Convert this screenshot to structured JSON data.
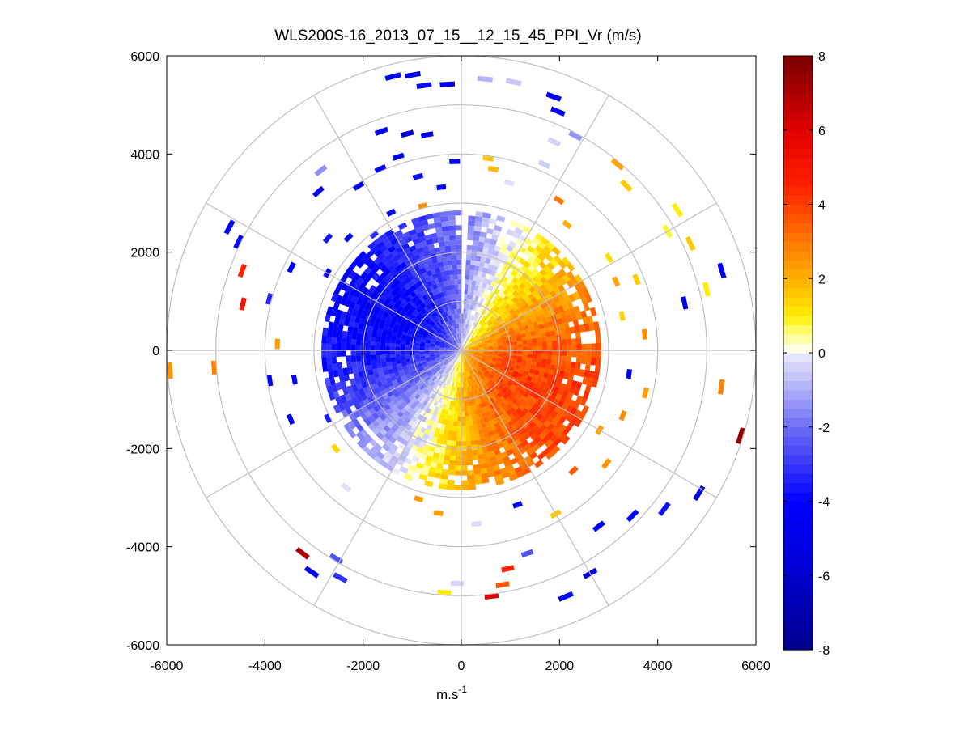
{
  "chart_data": {
    "type": "heatmap",
    "subtype": "polar-ppi",
    "title": "WLS200S-16_2013_07_15__12_15_45_PPI_Vr (m/s)",
    "xlabel": "m.s",
    "xlabel_superscript": "-1",
    "ylabel": "",
    "xlim": [
      -6000,
      6000
    ],
    "ylim": [
      -6000,
      6000
    ],
    "x_ticks": [
      "-6000",
      "-4000",
      "-2000",
      "0",
      "2000",
      "4000",
      "6000"
    ],
    "y_ticks": [
      "6000",
      "4000",
      "2000",
      "0",
      "-2000",
      "-4000",
      "-6000"
    ],
    "polar_rings_m": [
      1000,
      2000,
      3000,
      4000,
      5000,
      6000
    ],
    "polar_spokes_deg": [
      0,
      30,
      60,
      90,
      120,
      150,
      180,
      210,
      240,
      270,
      300,
      330
    ],
    "grid": true,
    "colorbar": {
      "min": -8,
      "max": 8,
      "ticks": [
        "8",
        "6",
        "4",
        "2",
        "0",
        "-2",
        "-4",
        "-6",
        "-8"
      ],
      "colormap": [
        {
          "v": -8,
          "c": "#00008c"
        },
        {
          "v": -5.5,
          "c": "#0000dc"
        },
        {
          "v": -4,
          "c": "#0000ff"
        },
        {
          "v": -2,
          "c": "#6e6ef5"
        },
        {
          "v": 0,
          "c": "#ececfc"
        },
        {
          "v": 0.01,
          "c": "#ffffff"
        },
        {
          "v": 0.5,
          "c": "#ffff8c"
        },
        {
          "v": 1,
          "c": "#ffee00"
        },
        {
          "v": 2,
          "c": "#ffae00"
        },
        {
          "v": 3,
          "c": "#ff7a00"
        },
        {
          "v": 4.5,
          "c": "#ff2000"
        },
        {
          "v": 6,
          "c": "#e00000"
        },
        {
          "v": 8,
          "c": "#780000"
        }
      ]
    },
    "wind_field": {
      "dense_range_m": [
        50,
        2800
      ],
      "speed_coefficient": 4.0,
      "wind_from_bearing_deg": 295
    },
    "sparse_returns": [
      {
        "r": 5700,
        "az": 346,
        "v": -4.6
      },
      {
        "r": 5650,
        "az": 350,
        "v": -4.3
      },
      {
        "r": 5400,
        "az": 352,
        "v": -3.8
      },
      {
        "r": 5380,
        "az": 357,
        "v": -4.9
      },
      {
        "r": 5500,
        "az": 5,
        "v": -0.9
      },
      {
        "r": 5520,
        "az": 11,
        "v": -0.6
      },
      {
        "r": 5450,
        "az": 20,
        "v": -4.5
      },
      {
        "r": 5200,
        "az": 22,
        "v": -4.2
      },
      {
        "r": 4900,
        "az": 28,
        "v": -1.4
      },
      {
        "r": 4600,
        "az": 24,
        "v": -0.4
      },
      {
        "r": 4900,
        "az": 40,
        "v": 2.2
      },
      {
        "r": 4700,
        "az": 45,
        "v": 1.5
      },
      {
        "r": 4800,
        "az": 60,
        "v": 0.8
      },
      {
        "r": 5200,
        "az": 57,
        "v": 1.0
      },
      {
        "r": 5100,
        "az": 65,
        "v": 1.6
      },
      {
        "r": 5500,
        "az": 73,
        "v": -4.5
      },
      {
        "r": 5100,
        "az": 76,
        "v": 1.0
      },
      {
        "r": 4600,
        "az": 78,
        "v": -4.1
      },
      {
        "r": 5300,
        "az": 98,
        "v": 2.8
      },
      {
        "r": 5900,
        "az": 107,
        "v": 7.5
      },
      {
        "r": 5600,
        "az": 121,
        "v": -4.4
      },
      {
        "r": 5200,
        "az": 128,
        "v": -3.8
      },
      {
        "r": 4800,
        "az": 134,
        "v": -4.0
      },
      {
        "r": 4500,
        "az": 142,
        "v": -4.4
      },
      {
        "r": 5200,
        "az": 150,
        "v": -5.0
      },
      {
        "r": 5400,
        "az": 157,
        "v": -4.0
      },
      {
        "r": 4800,
        "az": 170,
        "v": 3.5
      },
      {
        "r": 5000,
        "az": 173,
        "v": 6.0
      },
      {
        "r": 4500,
        "az": 168,
        "v": 4.5
      },
      {
        "r": 4300,
        "az": 162,
        "v": -2.5
      },
      {
        "r": 4900,
        "az": 184,
        "v": 1.0
      },
      {
        "r": 4700,
        "az": 181,
        "v": -0.4
      },
      {
        "r": 5200,
        "az": 208,
        "v": -3.1
      },
      {
        "r": 5400,
        "az": 214,
        "v": -4.8
      },
      {
        "r": 5200,
        "az": 218,
        "v": 7.0
      },
      {
        "r": 4900,
        "az": 211,
        "v": -2.5
      },
      {
        "r": 5900,
        "az": 266,
        "v": 2.5
      },
      {
        "r": 5000,
        "az": 266,
        "v": 2.8
      },
      {
        "r": 5300,
        "az": 298,
        "v": -4.3
      },
      {
        "r": 5000,
        "az": 296,
        "v": -4.0
      },
      {
        "r": 4700,
        "az": 290,
        "v": 4.5
      },
      {
        "r": 4500,
        "az": 282,
        "v": 5.0
      },
      {
        "r": 4300,
        "az": 318,
        "v": -4.2
      },
      {
        "r": 4600,
        "az": 322,
        "v": -1.5
      },
      {
        "r": 3900,
        "az": 328,
        "v": -4.6
      },
      {
        "r": 4000,
        "az": 336,
        "v": -4.2
      },
      {
        "r": 4100,
        "az": 342,
        "v": -5.0
      },
      {
        "r": 4700,
        "az": 340,
        "v": -4.0
      },
      {
        "r": 4500,
        "az": 346,
        "v": -6.0
      },
      {
        "r": 4400,
        "az": 351,
        "v": -4.4
      },
      {
        "r": 3600,
        "az": 346,
        "v": -3.8
      },
      {
        "r": 3300,
        "az": 353,
        "v": -4.1
      },
      {
        "r": 3000,
        "az": 345,
        "v": 2.6
      },
      {
        "r": 3900,
        "az": 8,
        "v": 1.6
      },
      {
        "r": 3700,
        "az": 10,
        "v": 1.8
      },
      {
        "r": 3500,
        "az": 16,
        "v": -0.2
      },
      {
        "r": 4100,
        "az": 24,
        "v": -0.5
      },
      {
        "r": 3600,
        "az": 33,
        "v": 3.0
      },
      {
        "r": 3300,
        "az": 40,
        "v": 2.0
      },
      {
        "r": 3500,
        "az": 58,
        "v": 1.2
      },
      {
        "r": 3400,
        "az": 66,
        "v": 2.2
      },
      {
        "r": 3800,
        "az": 68,
        "v": 1.5
      },
      {
        "r": 3300,
        "az": 78,
        "v": 1.4
      },
      {
        "r": 3700,
        "az": 85,
        "v": 2.6
      },
      {
        "r": 3400,
        "az": 98,
        "v": -4.6
      },
      {
        "r": 3800,
        "az": 103,
        "v": 2.4
      },
      {
        "r": 3500,
        "az": 112,
        "v": 2.7
      },
      {
        "r": 3200,
        "az": 120,
        "v": 2.2
      },
      {
        "r": 3700,
        "az": 128,
        "v": 2.5
      },
      {
        "r": 3300,
        "az": 137,
        "v": 3.5
      },
      {
        "r": 3800,
        "az": 150,
        "v": 1.6
      },
      {
        "r": 3300,
        "az": 160,
        "v": -4.2
      },
      {
        "r": 3500,
        "az": 175,
        "v": -0.3
      },
      {
        "r": 3300,
        "az": 188,
        "v": 2.3
      },
      {
        "r": 3100,
        "az": 196,
        "v": 2.4
      },
      {
        "r": 3600,
        "az": 220,
        "v": -0.2
      },
      {
        "r": 3200,
        "az": 232,
        "v": 1.4
      },
      {
        "r": 3000,
        "az": 243,
        "v": -3.5
      },
      {
        "r": 3700,
        "az": 248,
        "v": -4.4
      },
      {
        "r": 3400,
        "az": 260,
        "v": -4.3
      },
      {
        "r": 3900,
        "az": 261,
        "v": -4.0
      },
      {
        "r": 3700,
        "az": 272,
        "v": 2.3
      },
      {
        "r": 4000,
        "az": 285,
        "v": -3.3
      },
      {
        "r": 3800,
        "az": 296,
        "v": -4.1
      },
      {
        "r": 3500,
        "az": 310,
        "v": -3.6
      },
      {
        "r": 3200,
        "az": 315,
        "v": -4.8
      },
      {
        "r": 3100,
        "az": 300,
        "v": -4.0
      },
      {
        "r": 2900,
        "az": 323,
        "v": -3.2
      },
      {
        "r": 3100,
        "az": 333,
        "v": -4.5
      },
      {
        "r": 3800,
        "az": 358,
        "v": -4.2
      }
    ]
  }
}
